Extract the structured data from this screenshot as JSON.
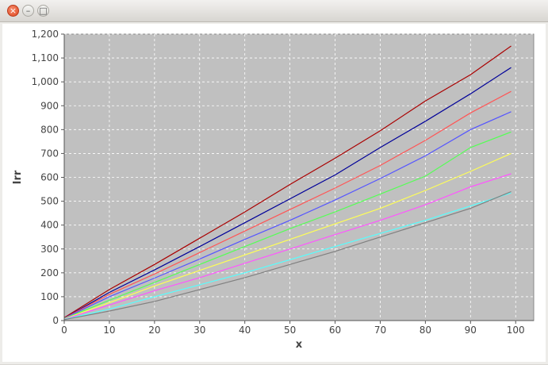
{
  "window": {
    "buttons": {
      "close": "close-icon",
      "minimize": "minimize-icon",
      "maximize": "maximize-icon"
    }
  },
  "chart_data": {
    "type": "line",
    "title": "",
    "xlabel": "x",
    "ylabel": "Irr",
    "xlim": [
      0,
      104
    ],
    "ylim": [
      0,
      1200
    ],
    "xticks": [
      0,
      10,
      20,
      30,
      40,
      50,
      60,
      70,
      80,
      90,
      100
    ],
    "yticks": [
      0,
      100,
      200,
      300,
      400,
      500,
      600,
      700,
      800,
      900,
      1000,
      1100,
      1200
    ],
    "ytick_labels": [
      "0",
      "100",
      "200",
      "300",
      "400",
      "500",
      "600",
      "700",
      "800",
      "900",
      "1,000",
      "1,100",
      "1,200"
    ],
    "grid": true,
    "plot_background": "#c0c0c0",
    "series": [
      {
        "color": "#aa0000",
        "x": [
          0,
          10,
          20,
          30,
          40,
          50,
          60,
          70,
          80,
          90,
          99
        ],
        "values": [
          12,
          130,
          235,
          345,
          455,
          570,
          680,
          795,
          920,
          1030,
          1150
        ]
      },
      {
        "color": "#000099",
        "x": [
          0,
          10,
          20,
          30,
          40,
          50,
          60,
          70,
          80,
          90,
          99
        ],
        "values": [
          10,
          118,
          212,
          310,
          410,
          510,
          610,
          725,
          835,
          950,
          1060
        ]
      },
      {
        "color": "#ff5555",
        "x": [
          0,
          10,
          20,
          30,
          40,
          50,
          60,
          70,
          80,
          90,
          99
        ],
        "values": [
          10,
          110,
          195,
          285,
          375,
          465,
          555,
          650,
          755,
          870,
          960
        ]
      },
      {
        "color": "#5555ff",
        "x": [
          0,
          10,
          20,
          30,
          40,
          50,
          60,
          70,
          80,
          90,
          99
        ],
        "values": [
          9,
          100,
          178,
          258,
          340,
          420,
          505,
          595,
          690,
          800,
          875
        ]
      },
      {
        "color": "#55ff55",
        "x": [
          0,
          10,
          20,
          30,
          40,
          50,
          60,
          70,
          80,
          90,
          99
        ],
        "values": [
          8,
          85,
          160,
          235,
          310,
          385,
          455,
          530,
          605,
          725,
          790
        ]
      },
      {
        "color": "#ffff55",
        "x": [
          0,
          10,
          20,
          30,
          40,
          50,
          60,
          70,
          80,
          90,
          99
        ],
        "values": [
          7,
          75,
          145,
          210,
          275,
          340,
          405,
          470,
          545,
          625,
          700
        ]
      },
      {
        "color": "#ff55ff",
        "x": [
          0,
          10,
          20,
          30,
          40,
          50,
          60,
          70,
          80,
          90,
          99
        ],
        "values": [
          6,
          65,
          125,
          180,
          240,
          300,
          360,
          420,
          485,
          560,
          615
        ]
      },
      {
        "color": "#55ffff",
        "x": [
          0,
          10,
          20,
          30,
          40,
          50,
          60,
          70,
          80,
          90,
          99
        ],
        "values": [
          5,
          48,
          100,
          150,
          200,
          255,
          310,
          365,
          420,
          480,
          535
        ]
      },
      {
        "color": "#808080",
        "x": [
          0,
          10,
          20,
          30,
          40,
          50,
          60,
          70,
          80,
          90,
          99
        ],
        "values": [
          4,
          40,
          80,
          130,
          180,
          235,
          290,
          350,
          410,
          470,
          540
        ]
      }
    ]
  }
}
